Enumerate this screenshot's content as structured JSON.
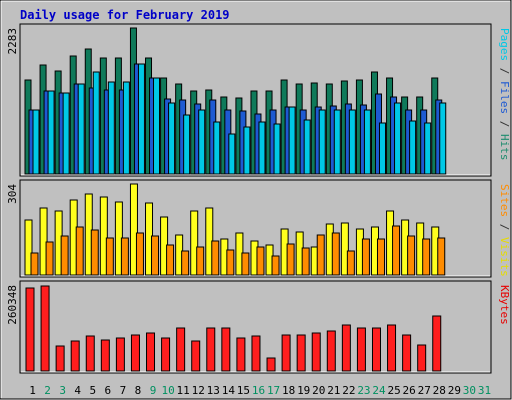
{
  "chart_data": {
    "type": "bar",
    "title": "Daily usage for February 2019",
    "days": [
      "1",
      "2",
      "3",
      "4",
      "5",
      "6",
      "7",
      "8",
      "9",
      "10",
      "11",
      "12",
      "13",
      "14",
      "15",
      "16",
      "17",
      "18",
      "19",
      "20",
      "21",
      "22",
      "23",
      "24",
      "25",
      "26",
      "27",
      "28",
      "29",
      "30",
      "31"
    ],
    "weekend_days": [
      2,
      3,
      9,
      10,
      16,
      17,
      23,
      24,
      30,
      31
    ],
    "panels": {
      "top": {
        "max_label": "2283",
        "ymax": 2283,
        "right_label": [
          {
            "text": "Pages",
            "color": "#00c8e6"
          },
          {
            "text": " / ",
            "color": "#333333"
          },
          {
            "text": "Files",
            "color": "#1e5ad2"
          },
          {
            "text": " / ",
            "color": "#333333"
          },
          {
            "text": "Hits",
            "color": "#1e8c6e"
          }
        ],
        "series": [
          {
            "name": "Hits",
            "color": "#0f7a5a",
            "values": [
              1470,
              1700,
              1610,
              1840,
              1960,
              1810,
              1820,
              2283,
              1810,
              1500,
              1400,
              1300,
              1320,
              1200,
              1190,
              1300,
              1300,
              1470,
              1400,
              1420,
              1400,
              1450,
              1470,
              1600,
              1500,
              1200,
              1200,
              1500
            ]
          },
          {
            "name": "Files",
            "color": "#1e5ad2",
            "values": [
              1000,
              1300,
              1270,
              1410,
              1350,
              1310,
              1310,
              1720,
              1500,
              1170,
              1150,
              1100,
              1150,
              1000,
              990,
              940,
              1000,
              1050,
              1000,
              1050,
              1060,
              1100,
              1080,
              1250,
              1200,
              1000,
              1000,
              1150
            ]
          },
          {
            "name": "Pages",
            "color": "#00c8e6",
            "values": [
              1000,
              1300,
              1270,
              1410,
              1590,
              1440,
              1440,
              1720,
              1500,
              1110,
              920,
              1000,
              820,
              620,
              740,
              820,
              780,
              1050,
              840,
              1000,
              1000,
              1000,
              1000,
              790,
              1110,
              830,
              790,
              1110
            ]
          }
        ]
      },
      "middle": {
        "max_label": "304",
        "ymax": 304,
        "right_label": [
          {
            "text": "Sites",
            "color": "#ff8c00"
          },
          {
            "text": " / ",
            "color": "#333333"
          },
          {
            "text": "Visits",
            "color": "#e6dc00"
          }
        ],
        "series": [
          {
            "name": "Visits",
            "color": "#ffff1e",
            "values": [
              185,
              225,
              215,
              250,
              270,
              260,
              245,
              304,
              240,
              195,
              135,
              215,
              225,
              120,
              140,
              115,
              100,
              155,
              145,
              95,
              170,
              175,
              155,
              160,
              215,
              185,
              175,
              160
            ]
          },
          {
            "name": "Sites",
            "color": "#ff8c00",
            "values": [
              75,
              110,
              130,
              160,
              150,
              125,
              125,
              140,
              130,
              100,
              80,
              95,
              115,
              85,
              75,
              95,
              65,
              105,
              90,
              135,
              140,
              80,
              120,
              120,
              165,
              130,
              120,
              125
            ]
          }
        ]
      },
      "bottom": {
        "max_label": "260348",
        "ymax": 260348,
        "right_label": [
          {
            "text": "KBytes",
            "color": "#e60000"
          }
        ],
        "series": [
          {
            "name": "KBytes",
            "color": "#ff1e1e",
            "values": [
              252000,
              258000,
              75000,
              90000,
              105000,
              95000,
              100000,
              110000,
              115000,
              100000,
              130000,
              90000,
              130000,
              130000,
              100000,
              105000,
              40000,
              110000,
              110000,
              115000,
              120000,
              140000,
              130000,
              130000,
              138000,
              108000,
              80000,
              165000
            ]
          }
        ]
      }
    }
  }
}
